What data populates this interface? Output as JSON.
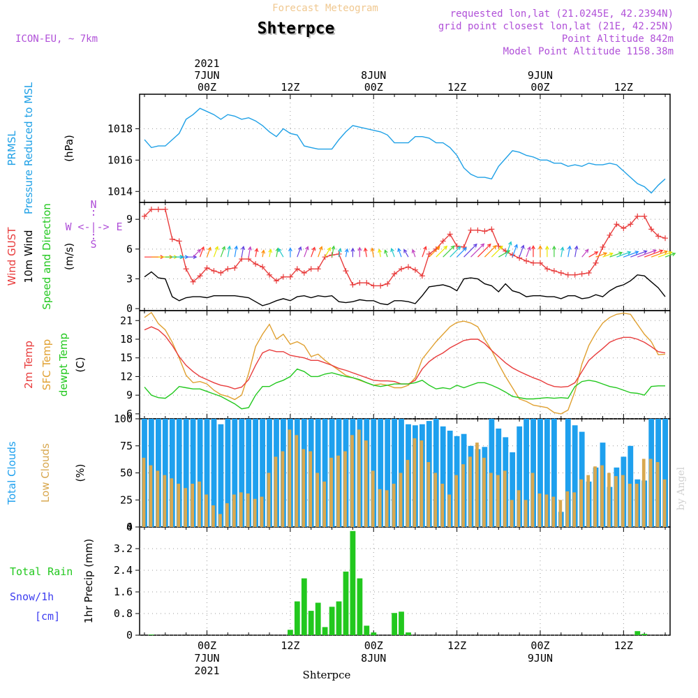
{
  "header": {
    "banner": "Forecast Meteogram",
    "location": "Shterpce",
    "model": "ICON-EU, ~ 7km",
    "requested": "requested lon,lat (21.0245E, 42.2394N)",
    "grid_point": "grid point closest lon,lat (21E, 42.25N)",
    "point_alt": "Point Altitude 842m",
    "model_alt": "Model Point Altitude 1158.38m",
    "footer_location": "Shterpce",
    "watermark": "by Angel"
  },
  "colors": {
    "pressure": "#1ea0e6",
    "gust": "#e83c3c",
    "wind": "#000000",
    "t2m": "#e83c3c",
    "tsfc": "#e0a030",
    "dewpt": "#22c81e",
    "total_clouds": "#1ea0ee",
    "low_clouds": "#d8a850",
    "rain": "#22c81e",
    "snow_label": "#3c3cf0",
    "purple": "#b050d8"
  },
  "time_axis": {
    "top_labels": [
      {
        "hour": 0,
        "lines": [
          "2021",
          "7JUN",
          "00Z"
        ]
      },
      {
        "hour": 12,
        "lines": [
          "12Z"
        ]
      },
      {
        "hour": 24,
        "lines": [
          "8JUN",
          "00Z"
        ]
      },
      {
        "hour": 36,
        "lines": [
          "12Z"
        ]
      },
      {
        "hour": 48,
        "lines": [
          "9JUN",
          "00Z"
        ]
      },
      {
        "hour": 60,
        "lines": [
          "12Z"
        ]
      }
    ],
    "bottom_labels": [
      {
        "hour": 0,
        "lines": [
          "00Z",
          "7JUN",
          "2021"
        ]
      },
      {
        "hour": 12,
        "lines": [
          "12Z"
        ]
      },
      {
        "hour": 24,
        "lines": [
          "00Z",
          "8JUN"
        ]
      },
      {
        "hour": 36,
        "lines": [
          "12Z"
        ]
      },
      {
        "hour": 48,
        "lines": [
          "00Z",
          "9JUN"
        ]
      },
      {
        "hour": 60,
        "lines": [
          "12Z"
        ]
      }
    ]
  },
  "panels": {
    "pressure": {
      "labels": [
        {
          "text": "PRMSL",
          "color": "#1ea0e6"
        },
        {
          "text": "Pressure Reduced to MSL",
          "color": "#1ea0e6"
        },
        {
          "text": "(hPa)",
          "color": "#000000"
        }
      ],
      "ticks": [
        "1014",
        "1016",
        "1018"
      ]
    },
    "wind": {
      "labels": [
        {
          "text": "Wind GUST",
          "color": "#e83c3c"
        },
        {
          "text": "10m Wind",
          "color": "#000000"
        },
        {
          "text": "Speed and Direction",
          "color": "#22c81e"
        },
        {
          "text": "(m/s)",
          "color": "#000000"
        }
      ],
      "ticks": [
        "0",
        "3",
        "6",
        "9"
      ],
      "compass": {
        "n": "N",
        "s": "S",
        "w": "W",
        "e": "E",
        "h": "<-|->",
        "v": ":"
      }
    },
    "temp": {
      "labels": [
        {
          "text": "2m Temp",
          "color": "#e83c3c"
        },
        {
          "text": "SFC Temp",
          "color": "#e0a030"
        },
        {
          "text": "dewpt Temp",
          "color": "#22c81e"
        },
        {
          "text": "(C)",
          "color": "#000000"
        }
      ],
      "ticks": [
        "6",
        "9",
        "12",
        "15",
        "18",
        "21"
      ]
    },
    "clouds": {
      "labels": [
        {
          "text": "Total Clouds",
          "color": "#1ea0ee"
        },
        {
          "text": "Low Clouds",
          "color": "#d8a850"
        },
        {
          "text": "(%)",
          "color": "#000000"
        }
      ],
      "ticks": [
        "0",
        "25",
        "50",
        "75",
        "100"
      ]
    },
    "precip": {
      "labels": [
        {
          "text": "1hr Precip (mm)",
          "color": "#000000"
        }
      ],
      "ticks": [
        "0",
        "0.8",
        "1.6",
        "2.4",
        "3.2",
        "4"
      ],
      "side_labels": [
        {
          "text": "Total  Rain",
          "color": "#22c81e"
        },
        {
          "text": "Snow/1h",
          "color": "#3c3cf0"
        },
        {
          "text": "[cm]",
          "color": "#3c3cf0"
        }
      ]
    }
  },
  "chart_data": [
    {
      "type": "line",
      "name": "PRMSL",
      "ylabel": "(hPa)",
      "ylim": [
        1013.3,
        1020.2
      ],
      "x_start_hour": -9,
      "x_step_hours": 1,
      "series": [
        {
          "name": "PRMSL",
          "values": [
            1017.3,
            1016.8,
            1016.9,
            1016.9,
            1017.3,
            1017.7,
            1018.6,
            1018.9,
            1019.3,
            1019.1,
            1018.9,
            1018.6,
            1018.9,
            1018.8,
            1018.6,
            1018.7,
            1018.5,
            1018.2,
            1017.8,
            1017.5,
            1018.0,
            1017.7,
            1017.6,
            1016.9,
            1016.8,
            1016.7,
            1016.7,
            1016.7,
            1017.3,
            1017.8,
            1018.2,
            1018.1,
            1018.0,
            1017.9,
            1017.8,
            1017.6,
            1017.1,
            1017.1,
            1017.1,
            1017.5,
            1017.5,
            1017.4,
            1017.1,
            1017.1,
            1016.8,
            1016.3,
            1015.5,
            1015.1,
            1014.9,
            1014.9,
            1014.8,
            1015.6,
            1016.1,
            1016.6,
            1016.5,
            1016.3,
            1016.2,
            1016.0,
            1016.0,
            1015.8,
            1015.8,
            1015.6,
            1015.7,
            1015.6,
            1015.8,
            1015.7,
            1015.7,
            1015.8,
            1015.7,
            1015.3,
            1014.9,
            1014.5,
            1014.3,
            1013.9,
            1014.4,
            1014.8
          ]
        }
      ]
    },
    {
      "type": "line",
      "name": "Wind",
      "ylabel": "(m/s)",
      "ylim": [
        -0.2,
        10.7
      ],
      "x_start_hour": -9,
      "x_step_hours": 1,
      "series": [
        {
          "name": "Wind GUST",
          "values": [
            9.3,
            10.0,
            10.0,
            10.0,
            7.0,
            6.8,
            4.0,
            2.7,
            3.3,
            4.1,
            3.8,
            3.6,
            4.0,
            4.1,
            5.0,
            5.0,
            4.5,
            4.2,
            3.4,
            2.8,
            3.2,
            3.2,
            4.0,
            3.6,
            4.0,
            4.0,
            5.2,
            5.4,
            5.5,
            3.8,
            2.4,
            2.6,
            2.6,
            2.3,
            2.3,
            2.5,
            3.5,
            4.0,
            4.2,
            3.9,
            3.3,
            5.5,
            6.0,
            6.8,
            7.5,
            6.3,
            6.2,
            7.9,
            7.9,
            7.8,
            8.0,
            6.3,
            5.8,
            5.4,
            5.1,
            4.8,
            4.6,
            4.6,
            4.0,
            3.8,
            3.6,
            3.4,
            3.4,
            3.5,
            3.6,
            4.6,
            6.2,
            7.4,
            8.5,
            8.1,
            8.5,
            9.3,
            9.3,
            8.0,
            7.3,
            7.1
          ]
        },
        {
          "name": "10m Wind",
          "values": [
            3.2,
            3.7,
            3.1,
            3.0,
            1.2,
            0.8,
            1.1,
            1.2,
            1.2,
            1.1,
            1.3,
            1.3,
            1.3,
            1.3,
            1.2,
            1.1,
            0.7,
            0.3,
            0.5,
            0.8,
            1.0,
            0.8,
            1.2,
            1.3,
            1.1,
            1.3,
            1.2,
            1.3,
            0.7,
            0.6,
            0.7,
            0.9,
            0.8,
            0.8,
            0.5,
            0.4,
            0.8,
            0.8,
            0.7,
            0.5,
            1.3,
            2.2,
            2.3,
            2.4,
            2.2,
            1.8,
            3.0,
            3.1,
            3.0,
            2.5,
            2.3,
            1.7,
            2.5,
            1.8,
            1.6,
            1.2,
            1.3,
            1.3,
            1.2,
            1.2,
            1.0,
            1.3,
            1.3,
            1.0,
            1.1,
            1.4,
            1.2,
            1.8,
            2.2,
            2.4,
            2.8,
            3.4,
            3.3,
            2.7,
            2.1,
            1.2
          ]
        }
      ],
      "arrows_dir_deg": [
        270,
        270,
        270,
        270,
        270,
        270,
        270,
        225,
        200,
        200,
        200,
        200,
        190,
        190,
        190,
        190,
        190,
        190,
        190,
        190,
        150,
        180,
        200,
        200,
        200,
        200,
        210,
        190,
        190,
        190,
        180,
        180,
        170,
        170,
        170,
        160,
        160,
        160,
        150,
        160,
        200,
        225,
        225,
        225,
        225,
        225,
        225,
        225,
        225,
        225,
        225,
        240,
        200,
        200,
        200,
        200,
        180,
        180,
        180,
        180,
        190,
        190,
        190,
        220,
        240,
        250,
        250,
        250,
        250,
        250,
        250,
        250,
        250,
        250,
        250,
        250
      ]
    },
    {
      "type": "line",
      "name": "Temperature",
      "ylabel": "(C)",
      "ylim": [
        5.2,
        22.6
      ],
      "x_start_hour": -9,
      "x_step_hours": 1,
      "series": [
        {
          "name": "2m Temp",
          "values": [
            19.5,
            20.0,
            19.5,
            18.5,
            17.0,
            15.2,
            13.8,
            12.8,
            12.0,
            11.5,
            11.0,
            10.6,
            10.4,
            10.0,
            10.3,
            11.5,
            13.8,
            15.8,
            16.3,
            16.0,
            16.0,
            15.4,
            15.2,
            15.0,
            14.6,
            14.6,
            14.2,
            13.8,
            13.3,
            13.0,
            12.6,
            12.2,
            11.8,
            11.4,
            11.3,
            11.3,
            11.2,
            10.8,
            10.8,
            11.4,
            13.2,
            14.4,
            15.2,
            15.8,
            16.6,
            17.2,
            17.8,
            18.0,
            18.0,
            17.3,
            16.2,
            15.2,
            14.2,
            13.4,
            12.8,
            12.3,
            11.8,
            11.4,
            10.8,
            10.4,
            10.3,
            10.4,
            11.0,
            12.8,
            14.6,
            15.6,
            16.5,
            17.5,
            18.0,
            18.3,
            18.3,
            18.0,
            17.5,
            16.8,
            16.0,
            15.8
          ]
        },
        {
          "name": "SFC Temp",
          "values": [
            21.5,
            22.3,
            20.5,
            19.5,
            17.5,
            15.0,
            12.2,
            11.0,
            11.2,
            10.8,
            9.8,
            9.1,
            8.8,
            8.3,
            9.0,
            12.5,
            16.8,
            18.8,
            20.4,
            18.0,
            18.8,
            17.2,
            17.6,
            17.0,
            15.2,
            15.6,
            14.6,
            13.8,
            13.0,
            12.2,
            11.8,
            11.4,
            11.0,
            10.6,
            10.8,
            10.6,
            10.2,
            10.2,
            10.6,
            11.8,
            14.8,
            16.2,
            17.6,
            18.8,
            20.0,
            20.7,
            20.9,
            20.6,
            20.0,
            18.0,
            16.2,
            14.0,
            12.0,
            10.2,
            8.4,
            8.0,
            7.4,
            7.2,
            7.0,
            6.2,
            6.0,
            6.6,
            9.6,
            14.0,
            17.0,
            19.0,
            20.6,
            21.5,
            22.0,
            22.2,
            22.0,
            20.4,
            18.8,
            17.6,
            15.5,
            15.6
          ]
        },
        {
          "name": "dewpt Temp",
          "values": [
            10.3,
            9.0,
            8.6,
            8.5,
            9.3,
            10.4,
            10.2,
            10.0,
            10.0,
            9.6,
            9.2,
            8.8,
            8.2,
            7.6,
            6.8,
            7.0,
            9.0,
            10.4,
            10.4,
            11.0,
            11.4,
            12.0,
            13.2,
            12.8,
            12.0,
            12.0,
            12.4,
            12.6,
            12.3,
            12.0,
            11.8,
            11.5,
            11.0,
            10.6,
            10.4,
            10.6,
            10.8,
            10.8,
            10.8,
            11.0,
            11.4,
            10.6,
            10.0,
            10.2,
            10.0,
            10.6,
            10.2,
            10.6,
            11.0,
            11.0,
            10.6,
            10.1,
            9.5,
            8.8,
            8.6,
            8.4,
            8.4,
            8.5,
            8.6,
            8.5,
            8.6,
            8.5,
            10.4,
            11.2,
            11.4,
            11.2,
            10.8,
            10.4,
            10.2,
            9.8,
            9.4,
            9.3,
            9.0,
            10.4,
            10.5,
            10.5
          ]
        }
      ]
    },
    {
      "type": "bar",
      "name": "Clouds",
      "ylabel": "(%)",
      "ylim": [
        0,
        100
      ],
      "x_start_hour": -9,
      "x_step_hours": 1,
      "series": [
        {
          "name": "Total Clouds",
          "values": [
            100,
            100,
            100,
            100,
            100,
            100,
            100,
            100,
            100,
            100,
            100,
            95,
            100,
            100,
            100,
            100,
            100,
            100,
            100,
            100,
            100,
            100,
            100,
            100,
            100,
            100,
            100,
            100,
            100,
            100,
            100,
            100,
            100,
            100,
            100,
            100,
            100,
            100,
            95,
            94,
            95,
            98,
            100,
            93,
            89,
            84,
            86,
            75,
            72,
            74,
            100,
            91,
            83,
            69,
            93,
            100,
            100,
            100,
            100,
            100,
            14,
            100,
            94,
            88,
            42,
            55,
            78,
            37,
            55,
            65,
            75,
            44,
            43,
            100,
            100,
            100,
            100,
            87,
            96,
            100
          ]
        },
        {
          "name": "Low Clouds",
          "values": [
            64,
            57,
            52,
            48,
            45,
            40,
            36,
            40,
            42,
            30,
            20,
            12,
            22,
            30,
            32,
            31,
            26,
            28,
            50,
            65,
            70,
            90,
            85,
            72,
            70,
            50,
            42,
            64,
            66,
            70,
            85,
            90,
            80,
            52,
            35,
            34,
            40,
            50,
            62,
            82,
            80,
            60,
            50,
            40,
            30,
            48,
            58,
            65,
            78,
            64,
            50,
            48,
            52,
            25,
            34,
            25,
            50,
            31,
            30,
            28,
            25,
            33,
            32,
            44,
            48,
            56,
            57,
            50,
            47,
            48,
            40,
            40,
            63,
            63,
            60,
            44,
            42,
            42,
            36,
            17
          ]
        }
      ]
    },
    {
      "type": "bar",
      "name": "1hr Precip",
      "ylabel": "1hr Precip (mm)",
      "ylim": [
        0,
        4
      ],
      "x_start_hour": -9,
      "x_step_hours": 1,
      "series": [
        {
          "name": "Total Rain",
          "values": [
            0,
            0.02,
            0,
            0,
            0,
            0,
            0,
            0,
            0,
            0,
            0,
            0,
            0,
            0,
            0,
            0,
            0,
            0,
            0,
            0,
            0,
            0.2,
            1.25,
            2.1,
            0.9,
            1.2,
            0.3,
            1.05,
            1.25,
            2.35,
            3.85,
            2.1,
            0.35,
            0.1,
            0,
            0,
            0.82,
            0.87,
            0.1,
            0,
            0,
            0,
            0,
            0,
            0,
            0,
            0,
            0,
            0,
            0,
            0,
            0,
            0,
            0,
            0,
            0,
            0,
            0,
            0,
            0,
            0,
            0,
            0,
            0,
            0,
            0,
            0,
            0,
            0,
            0,
            0,
            0.15,
            0.05,
            0,
            0,
            0,
            0,
            0,
            0.15,
            0.05
          ]
        }
      ]
    }
  ]
}
